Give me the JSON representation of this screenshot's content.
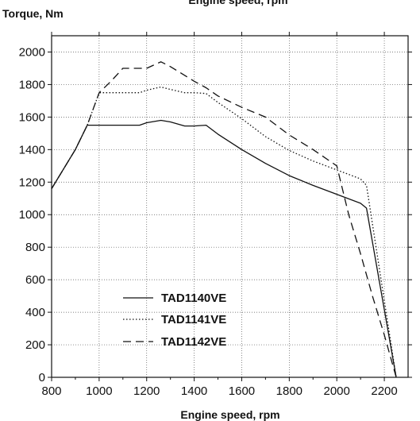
{
  "chart_data": {
    "type": "line",
    "title": "",
    "top_xlabel": "Engine speed, rpm",
    "xlabel": "Engine speed, rpm",
    "ylabel": "Torque, Nm",
    "xlim": [
      800,
      2300
    ],
    "ylim": [
      0,
      2100
    ],
    "x_ticks": [
      800,
      1000,
      1200,
      1400,
      1600,
      1800,
      2000,
      2200
    ],
    "y_ticks": [
      0,
      200,
      400,
      600,
      800,
      1000,
      1200,
      1400,
      1600,
      1800,
      2000
    ],
    "grid": true,
    "legend_position": "bottom-left",
    "series": [
      {
        "name": "TAD1140VE",
        "style": "solid",
        "color": "#111111",
        "points": [
          [
            800,
            1160
          ],
          [
            900,
            1400
          ],
          [
            950,
            1550
          ],
          [
            1000,
            1550
          ],
          [
            1100,
            1550
          ],
          [
            1170,
            1550
          ],
          [
            1200,
            1565
          ],
          [
            1260,
            1580
          ],
          [
            1300,
            1570
          ],
          [
            1360,
            1545
          ],
          [
            1400,
            1545
          ],
          [
            1450,
            1550
          ],
          [
            1500,
            1495
          ],
          [
            1600,
            1400
          ],
          [
            1700,
            1315
          ],
          [
            1800,
            1240
          ],
          [
            1900,
            1180
          ],
          [
            2000,
            1125
          ],
          [
            2100,
            1070
          ],
          [
            2125,
            1040
          ],
          [
            2250,
            0
          ]
        ]
      },
      {
        "name": "TAD1141VE",
        "style": "dotted",
        "color": "#111111",
        "points": [
          [
            800,
            1160
          ],
          [
            900,
            1400
          ],
          [
            950,
            1550
          ],
          [
            1000,
            1750
          ],
          [
            1100,
            1750
          ],
          [
            1170,
            1750
          ],
          [
            1200,
            1765
          ],
          [
            1260,
            1785
          ],
          [
            1300,
            1770
          ],
          [
            1360,
            1750
          ],
          [
            1400,
            1750
          ],
          [
            1450,
            1745
          ],
          [
            1500,
            1690
          ],
          [
            1600,
            1590
          ],
          [
            1700,
            1480
          ],
          [
            1800,
            1395
          ],
          [
            1900,
            1330
          ],
          [
            2000,
            1275
          ],
          [
            2100,
            1220
          ],
          [
            2125,
            1180
          ],
          [
            2250,
            0
          ]
        ]
      },
      {
        "name": "TAD1142VE",
        "style": "dashed",
        "color": "#111111",
        "points": [
          [
            800,
            1160
          ],
          [
            900,
            1400
          ],
          [
            950,
            1550
          ],
          [
            1000,
            1750
          ],
          [
            1050,
            1820
          ],
          [
            1100,
            1900
          ],
          [
            1200,
            1900
          ],
          [
            1260,
            1940
          ],
          [
            1300,
            1910
          ],
          [
            1400,
            1820
          ],
          [
            1450,
            1780
          ],
          [
            1500,
            1730
          ],
          [
            1600,
            1660
          ],
          [
            1700,
            1600
          ],
          [
            1800,
            1490
          ],
          [
            1900,
            1400
          ],
          [
            2000,
            1300
          ],
          [
            2050,
            1000
          ],
          [
            2100,
            760
          ],
          [
            2150,
            500
          ],
          [
            2200,
            260
          ],
          [
            2250,
            0
          ]
        ]
      }
    ]
  }
}
